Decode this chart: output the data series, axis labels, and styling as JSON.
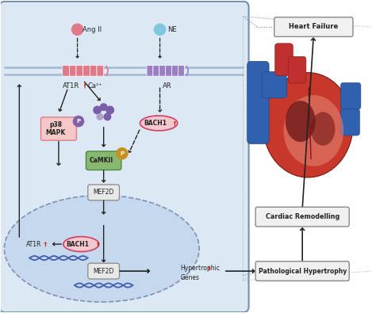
{
  "fig_width": 4.74,
  "fig_height": 3.95,
  "dpi": 100,
  "bg_color": "#ffffff",
  "cell_bg": "#dce9f5",
  "nucleus_bg": "#c5d8ee",
  "receptor_at1r_color": "#e07a8a",
  "receptor_ar_color": "#9b7fc4",
  "angii_dot_color": "#e07a8a",
  "ne_dot_color": "#80c8e0",
  "ca_dot_color": "#7b5ea7",
  "ca_dot_color2": "#b0a0c8",
  "bach1_fill": "#f5c8d0",
  "bach1_edge": "#d04060",
  "p38_fill": "#f5c8c8",
  "p38_edge": "#e07a8a",
  "camkii_fill": "#88b870",
  "camkii_edge": "#508840",
  "mef2d_fill": "#e8e8e8",
  "mef2d_edge": "#888888",
  "p_purple": "#8060a8",
  "p_gold": "#c89020",
  "dna_color": "#4060b0",
  "arrow_color": "#222222",
  "red_up": "#cc2200",
  "labels": {
    "angii": "Ang II",
    "ne": "NE",
    "at1r": "AT1R",
    "ar": "AR",
    "ca": "Ca²⁺",
    "bach1_top": "BACH1",
    "p38": "p38\nMAPK",
    "camkii": "CaMKII",
    "mef2d_top": "MEF2D",
    "at1r_bottom": "AT1R",
    "bach1_bottom": "BACH1",
    "mef2d_bottom": "MEF2D",
    "hypertrophic": "Hypertrophic\nGenes",
    "pathological": "Pathological Hypertrophy",
    "cardiac": "Cardiac Remodelling",
    "heart_failure": "Heart Failure"
  }
}
